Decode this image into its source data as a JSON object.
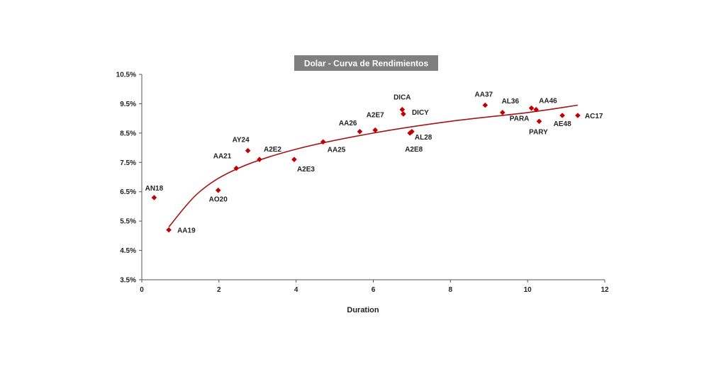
{
  "chart_data": {
    "type": "scatter",
    "title": "Dolar - Curva de Rendimientos",
    "xlabel": "Duration",
    "ylabel": "",
    "xlim": [
      0,
      12
    ],
    "ylim": [
      3.5,
      10.5
    ],
    "x_ticks": [
      "0",
      "2",
      "4",
      "6",
      "8",
      "10",
      "12"
    ],
    "y_ticks": [
      "3.5%",
      "4.5%",
      "5.5%",
      "6.5%",
      "7.5%",
      "8.5%",
      "9.5%",
      "10.5%"
    ],
    "grid": false,
    "legend": "none",
    "colors": {
      "points": "#c00000",
      "trend": "#a31515",
      "title_bg": "#7f7f7f"
    },
    "points": [
      {
        "label": "AN18",
        "x": 0.32,
        "y": 6.3
      },
      {
        "label": "AA19",
        "x": 0.7,
        "y": 5.2
      },
      {
        "label": "AO20",
        "x": 1.98,
        "y": 6.55
      },
      {
        "label": "AA21",
        "x": 2.45,
        "y": 7.3
      },
      {
        "label": "AY24",
        "x": 2.75,
        "y": 7.9
      },
      {
        "label": "A2E2",
        "x": 3.05,
        "y": 7.6
      },
      {
        "label": "A2E3",
        "x": 3.95,
        "y": 7.6
      },
      {
        "label": "AA25",
        "x": 4.7,
        "y": 8.2
      },
      {
        "label": "AA26",
        "x": 5.65,
        "y": 8.55
      },
      {
        "label": "A2E7",
        "x": 6.05,
        "y": 8.6
      },
      {
        "label": "DICA",
        "x": 6.75,
        "y": 9.3
      },
      {
        "label": "DICY",
        "x": 6.78,
        "y": 9.15
      },
      {
        "label": "AL28",
        "x": 7.0,
        "y": 8.55
      },
      {
        "label": "A2E8",
        "x": 6.95,
        "y": 8.5
      },
      {
        "label": "AA37",
        "x": 8.9,
        "y": 9.45
      },
      {
        "label": "AL36",
        "x": 9.35,
        "y": 9.2
      },
      {
        "label": "PARA",
        "x": 10.1,
        "y": 9.35
      },
      {
        "label": "AA46",
        "x": 10.22,
        "y": 9.3
      },
      {
        "label": "PARY",
        "x": 10.3,
        "y": 8.9
      },
      {
        "label": "AE48",
        "x": 10.9,
        "y": 9.1
      },
      {
        "label": "AC17",
        "x": 11.3,
        "y": 9.1
      }
    ],
    "trendline": {
      "type": "logarithmic",
      "x": [
        0.7,
        1.5,
        2.5,
        4,
        6,
        8,
        10,
        11.3
      ],
      "y": [
        5.3,
        6.5,
        7.3,
        7.95,
        8.5,
        8.9,
        9.2,
        9.45
      ]
    }
  }
}
